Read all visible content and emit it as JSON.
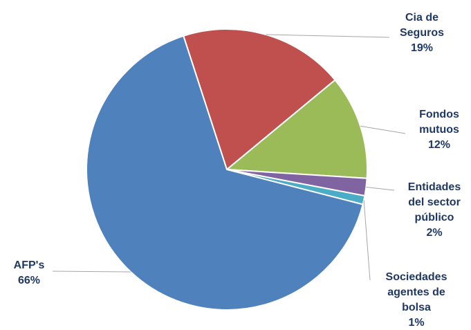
{
  "chart_data": {
    "type": "pie",
    "title": "",
    "start_angle_deg": -18,
    "direction": "clockwise",
    "slices": [
      {
        "label_lines": [
          "Cia de",
          "Seguros"
        ],
        "value": 19,
        "value_label": "19%",
        "color": "#C0504D"
      },
      {
        "label_lines": [
          "Fondos",
          "mutuos"
        ],
        "value": 12,
        "value_label": "12%",
        "color": "#9BBB59"
      },
      {
        "label_lines": [
          "Entidades",
          "del sector",
          "público"
        ],
        "value": 2,
        "value_label": "2%",
        "color": "#8064A2"
      },
      {
        "label_lines": [
          "Sociedades",
          "agentes de",
          "bolsa"
        ],
        "value": 1,
        "value_label": "1%",
        "color": "#4BACC6"
      },
      {
        "label_lines": [
          "AFP's"
        ],
        "value": 66,
        "value_label": "66%",
        "color": "#4F81BD"
      }
    ],
    "label_color": "#1F3864",
    "leader_line_color": "#A6A6A6"
  }
}
